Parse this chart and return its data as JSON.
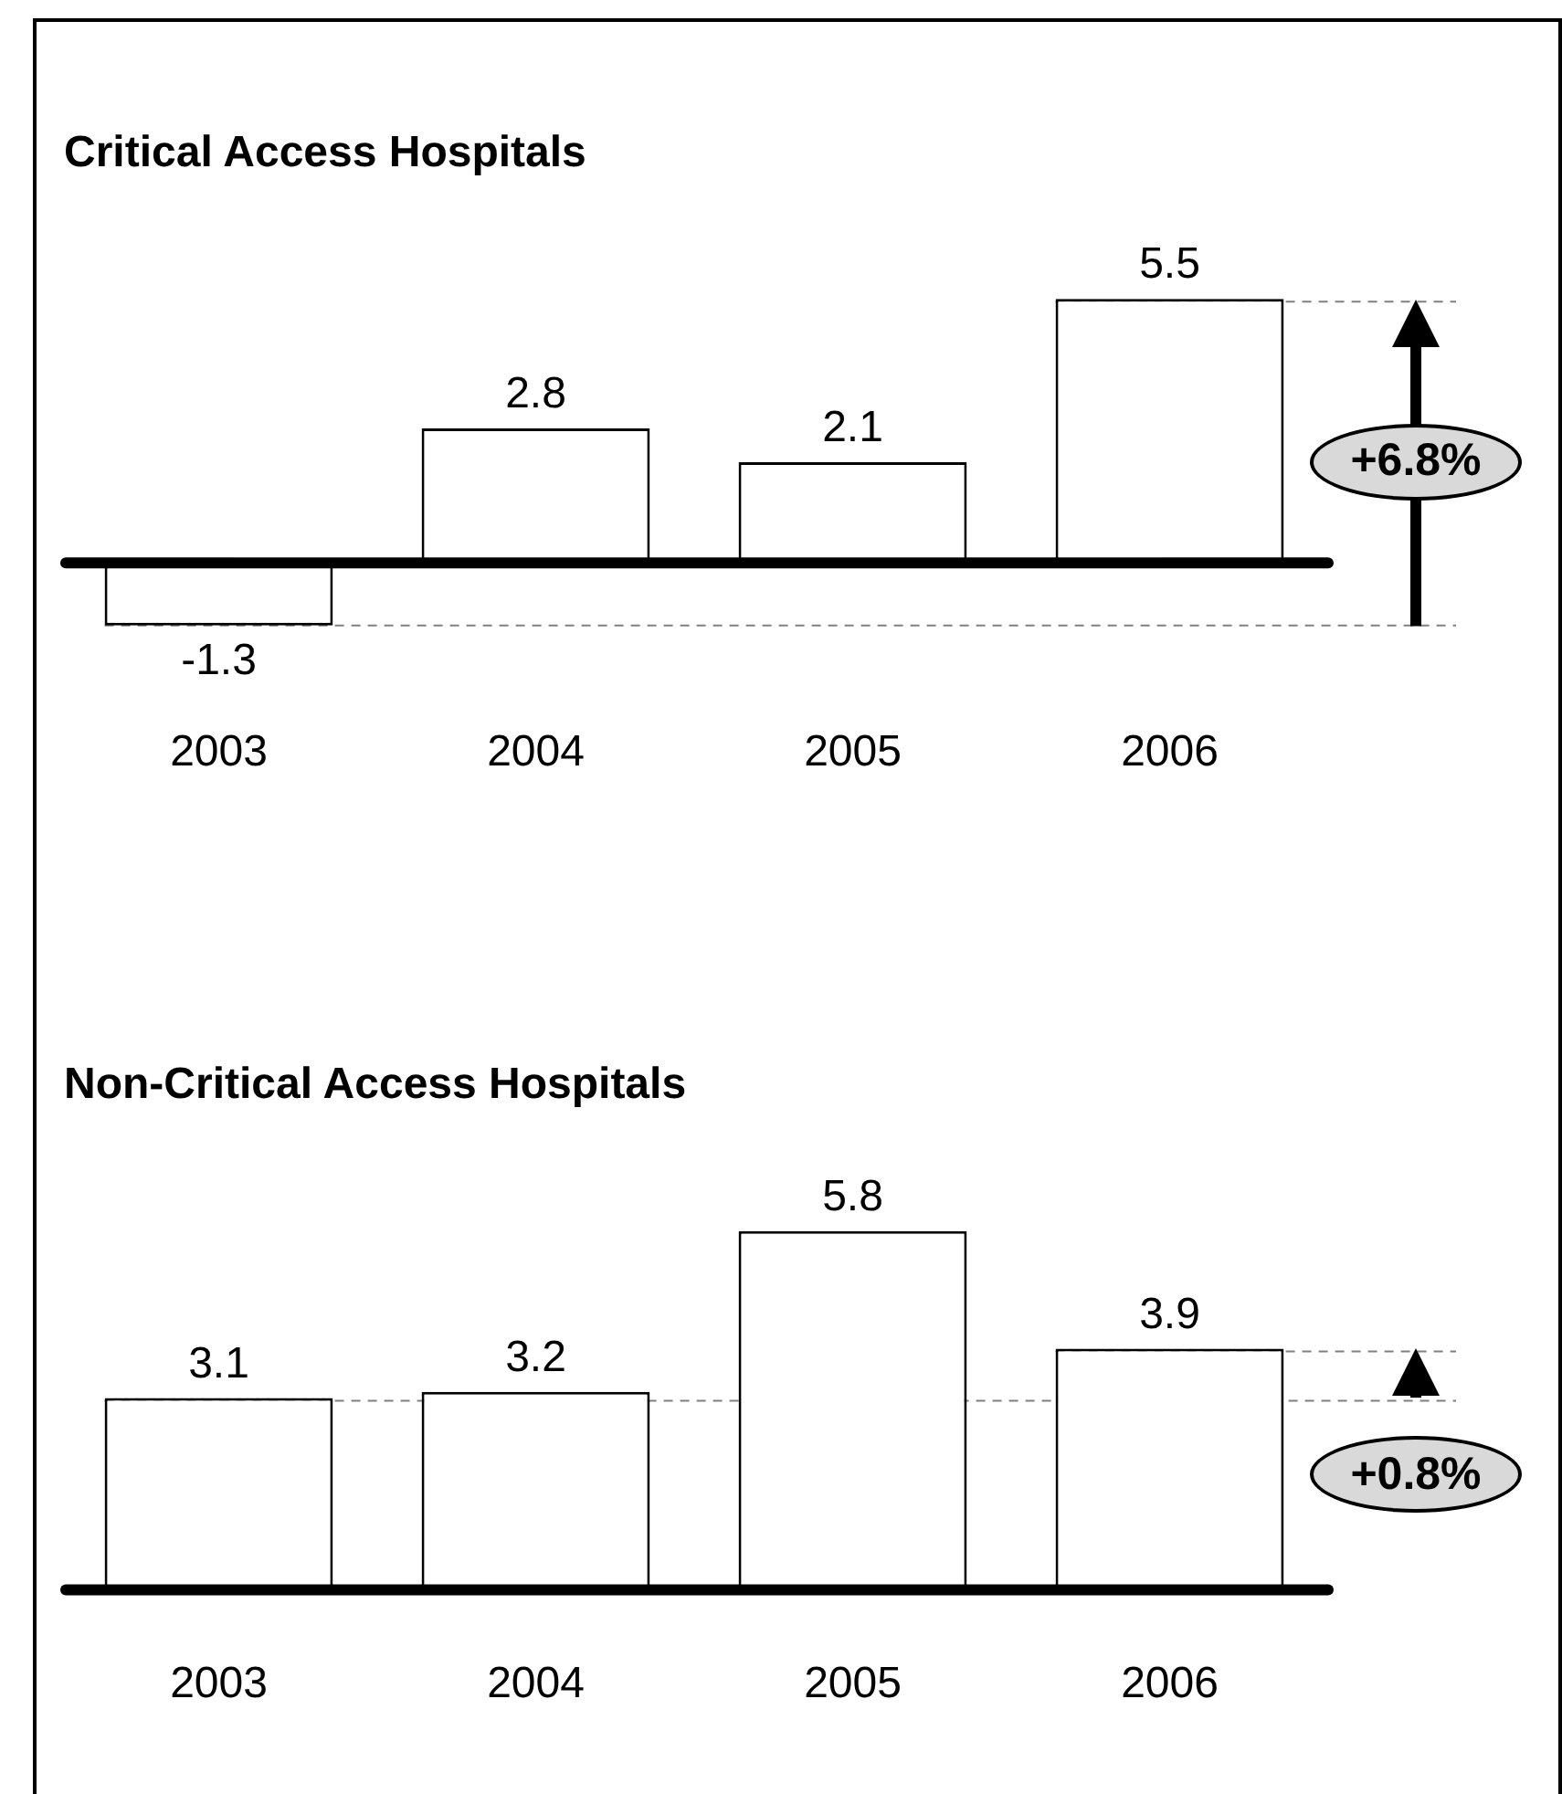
{
  "chart_data": [
    {
      "type": "bar",
      "title": "Critical Access Hospitals",
      "categories": [
        "2003",
        "2004",
        "2005",
        "2006"
      ],
      "values": [
        -1.3,
        2.8,
        2.1,
        5.5
      ],
      "color": "#ffffff",
      "data_labels": true,
      "ref_lines": [
        {
          "axis": "y",
          "value": -1.3,
          "color": "#808080",
          "line_style": "dashed"
        },
        {
          "axis": "y",
          "value": 5.5,
          "color": "#808080",
          "line_style": "dashed"
        }
      ],
      "annotations": [
        "+6.8%"
      ]
    },
    {
      "type": "bar",
      "title": "Non-Critical Access Hospitals",
      "categories": [
        "2003",
        "2004",
        "2005",
        "2006"
      ],
      "values": [
        3.1,
        3.2,
        5.8,
        3.9
      ],
      "color": "#ffffff",
      "data_labels": true,
      "ref_lines": [
        {
          "axis": "y",
          "value": 3.1,
          "color": "#808080",
          "line_style": "dashed"
        },
        {
          "axis": "y",
          "value": 3.9,
          "color": "#808080",
          "line_style": "dashed"
        }
      ],
      "annotations": [
        "+0.8%"
      ]
    }
  ]
}
